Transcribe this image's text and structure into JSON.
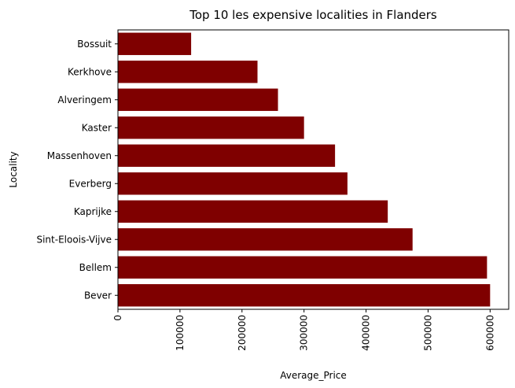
{
  "chart_data": {
    "type": "bar",
    "orientation": "horizontal",
    "title": "Top 10 les expensive localities in Flanders",
    "xlabel": "Average_Price",
    "ylabel": "Locality",
    "categories": [
      "Bever",
      "Bellem",
      "Sint-Eloois-Vijve",
      "Kaprijke",
      "Everberg",
      "Massenhoven",
      "Kaster",
      "Alveringem",
      "Kerkhove",
      "Bossuit"
    ],
    "values": [
      600000,
      595000,
      475000,
      435000,
      370000,
      350000,
      300000,
      258000,
      225000,
      118000
    ],
    "xlim": [
      0,
      630000
    ],
    "xticks": [
      0,
      100000,
      200000,
      300000,
      400000,
      500000,
      600000
    ],
    "xtick_labels": [
      "0",
      "100000",
      "200000",
      "300000",
      "400000",
      "500000",
      "600000"
    ],
    "bar_color": "#7f0000",
    "grid": false
  }
}
